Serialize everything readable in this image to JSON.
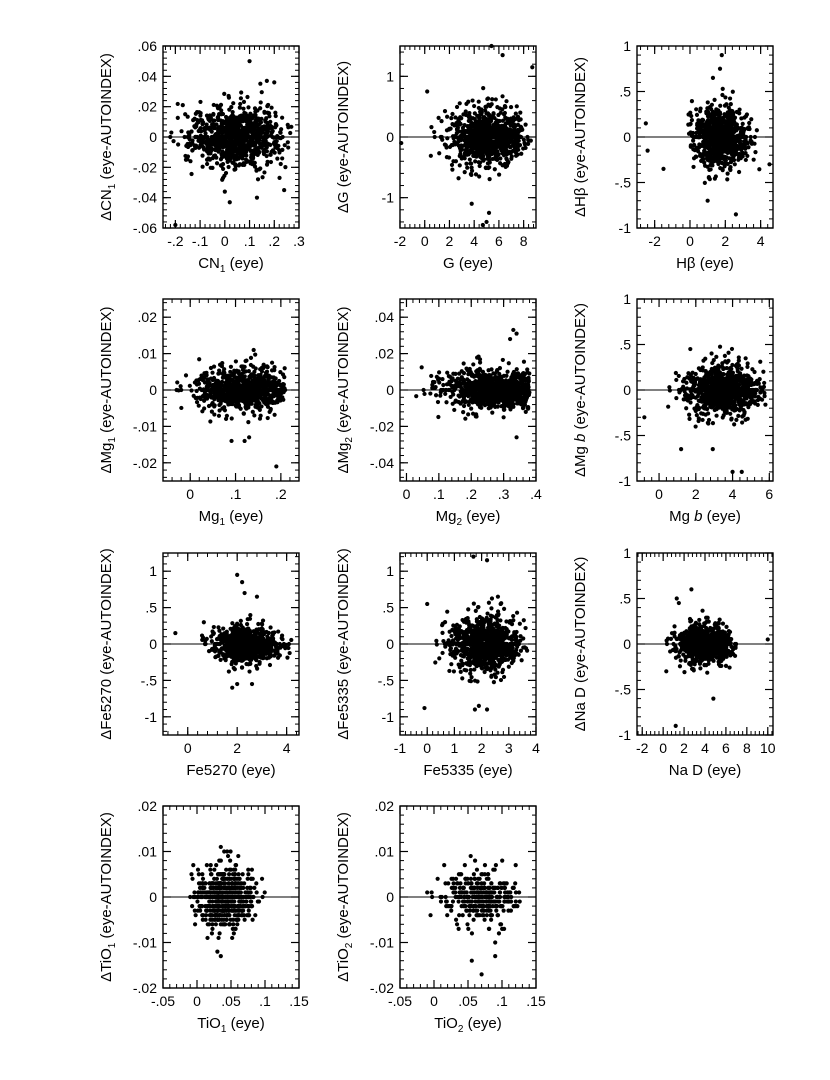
{
  "chart_data": [
    {
      "type": "scatter",
      "xlabel": "CN1 (eye)",
      "xlabel_base": "CN",
      "xlabel_sub": "1",
      "xlabel_tail": " (eye)",
      "ylabel_base": "ΔCN",
      "ylabel_sub": "1",
      "ylabel_tail": " (eye-AUTOINDEX)",
      "xlim": [
        -0.25,
        0.3
      ],
      "ylim": [
        -0.06,
        0.06
      ],
      "xticks": [
        -0.2,
        -0.1,
        0,
        0.1,
        0.2,
        0.3
      ],
      "xtick_labels": [
        "-.2",
        "-.1",
        "0",
        ".1",
        ".2",
        ".3"
      ],
      "yticks": [
        -0.06,
        -0.04,
        -0.02,
        0,
        0.02,
        0.04,
        0.06
      ],
      "ytick_labels": [
        "-.06",
        "-.04",
        "-.02",
        "0",
        ".02",
        ".04",
        ".06"
      ],
      "reference_line_y": 0,
      "sample": {
        "n": 950,
        "x_mean": 0.04,
        "x_sd": 0.09,
        "y_sd": 0.009,
        "x_min": -0.23,
        "x_max": 0.27
      },
      "outliers": [
        [
          0.1,
          0.05
        ],
        [
          0.17,
          0.037
        ],
        [
          0.2,
          0.036
        ],
        [
          -0.2,
          -0.058
        ],
        [
          0.24,
          -0.035
        ],
        [
          0.02,
          -0.043
        ],
        [
          0.13,
          -0.04
        ],
        [
          -0.17,
          0.021
        ],
        [
          0.0,
          -0.036
        ]
      ]
    },
    {
      "type": "scatter",
      "xlabel": "G (eye)",
      "ylabel": "ΔG (eye-AUTOINDEX)",
      "xlim": [
        -2,
        9
      ],
      "ylim": [
        -1.5,
        1.5
      ],
      "xticks": [
        -2,
        0,
        2,
        4,
        6,
        8
      ],
      "xtick_labels": [
        "-2",
        "0",
        "2",
        "4",
        "6",
        "8"
      ],
      "yticks": [
        -1,
        0,
        1
      ],
      "ytick_labels": [
        "-1",
        "0",
        "1"
      ],
      "reference_line_y": 0,
      "sample": {
        "n": 950,
        "x_mean": 5.0,
        "x_sd": 1.5,
        "y_sd": 0.22,
        "x_min": -1.9,
        "x_max": 8.8
      },
      "outliers": [
        [
          5.4,
          1.5
        ],
        [
          6.3,
          1.35
        ],
        [
          8.7,
          1.15
        ],
        [
          3.8,
          -1.1
        ],
        [
          5.0,
          -1.4
        ],
        [
          4.7,
          -1.45
        ],
        [
          5.2,
          -1.25
        ],
        [
          0.2,
          0.75
        ],
        [
          -1.9,
          -0.1
        ]
      ]
    },
    {
      "type": "scatter",
      "xlabel": "Hβ (eye)",
      "ylabel": "ΔHβ (eye-AUTOINDEX)",
      "xlim": [
        -3,
        4.7
      ],
      "ylim": [
        -1,
        1
      ],
      "xticks": [
        -2,
        0,
        2,
        4
      ],
      "xtick_labels": [
        "-2",
        "0",
        "2",
        "4"
      ],
      "yticks": [
        -1,
        -0.5,
        0,
        0.5,
        1
      ],
      "ytick_labels": [
        "-1",
        "-.5",
        "0",
        ".5",
        "1"
      ],
      "reference_line_y": 0,
      "sample": {
        "n": 900,
        "x_mean": 1.7,
        "x_sd": 0.7,
        "y_sd": 0.16,
        "x_min": -0.2,
        "x_max": 4.5
      },
      "outliers": [
        [
          1.8,
          0.9
        ],
        [
          1.3,
          0.65
        ],
        [
          1.7,
          0.75
        ],
        [
          -2.5,
          0.15
        ],
        [
          -2.4,
          -0.15
        ],
        [
          -1.5,
          -0.35
        ],
        [
          2.6,
          -0.85
        ],
        [
          1.0,
          -0.7
        ],
        [
          4.5,
          -0.3
        ]
      ]
    },
    {
      "type": "scatter",
      "xlabel_base": "Mg",
      "xlabel_sub": "1",
      "xlabel_tail": " (eye)",
      "ylabel_base": "ΔMg",
      "ylabel_sub": "1",
      "ylabel_tail": " (eye-AUTOINDEX)",
      "xlim": [
        -0.06,
        0.24
      ],
      "ylim": [
        -0.025,
        0.025
      ],
      "xticks": [
        0,
        0.1,
        0.2
      ],
      "xtick_labels": [
        "0",
        ".1",
        ".2"
      ],
      "yticks": [
        -0.02,
        -0.01,
        0,
        0.01,
        0.02
      ],
      "ytick_labels": [
        "-.02",
        "-.01",
        "0",
        ".01",
        ".02"
      ],
      "reference_line_y": 0,
      "sample": {
        "n": 900,
        "x_mean": 0.12,
        "x_sd": 0.05,
        "y_sd": 0.0028,
        "x_min": -0.03,
        "x_max": 0.21
      },
      "outliers": [
        [
          0.14,
          0.011
        ],
        [
          0.19,
          -0.021
        ],
        [
          0.13,
          -0.013
        ],
        [
          0.12,
          -0.014
        ],
        [
          -0.03,
          0.0
        ]
      ]
    },
    {
      "type": "scatter",
      "xlabel_base": "Mg",
      "xlabel_sub": "2",
      "xlabel_tail": " (eye)",
      "ylabel_base": "ΔMg",
      "ylabel_sub": "2",
      "ylabel_tail": " (eye-AUTOINDEX)",
      "xlim": [
        -0.02,
        0.4
      ],
      "ylim": [
        -0.05,
        0.05
      ],
      "xticks": [
        0,
        0.1,
        0.2,
        0.3,
        0.4
      ],
      "xtick_labels": [
        "0",
        ".1",
        ".2",
        ".3",
        ".4"
      ],
      "yticks": [
        -0.04,
        -0.02,
        0,
        0.02,
        0.04
      ],
      "ytick_labels": [
        "-.04",
        "-.02",
        "0",
        ".02",
        ".04"
      ],
      "reference_line_y": 0,
      "sample": {
        "n": 950,
        "x_mean": 0.28,
        "x_sd": 0.08,
        "y_sd": 0.005,
        "x_min": 0.0,
        "x_max": 0.38
      },
      "outliers": [
        [
          0.33,
          0.033
        ],
        [
          0.34,
          0.031
        ],
        [
          0.32,
          0.028
        ],
        [
          0.34,
          -0.026
        ],
        [
          0.36,
          -0.01
        ],
        [
          0.3,
          -0.015
        ]
      ]
    },
    {
      "type": "scatter",
      "xlabel_html": "Mg b (eye)",
      "xlabel_base": "Mg ",
      "xlabel_ital": "b",
      "xlabel_tail": " (eye)",
      "ylabel_base": "ΔMg ",
      "ylabel_ital": "b",
      "ylabel_tail": " (eye-AUTOINDEX)",
      "xlim": [
        -1.2,
        6.2
      ],
      "ylim": [
        -1,
        1
      ],
      "xticks": [
        0,
        2,
        4,
        6
      ],
      "xtick_labels": [
        "0",
        "2",
        "4",
        "6"
      ],
      "yticks": [
        -1,
        -0.5,
        0,
        0.5,
        1
      ],
      "ytick_labels": [
        "-1",
        "-.5",
        "0",
        ".5",
        "1"
      ],
      "reference_line_y": 0,
      "sample": {
        "n": 900,
        "x_mean": 3.5,
        "x_sd": 1.0,
        "y_sd": 0.13,
        "x_min": -0.8,
        "x_max": 5.8
      },
      "outliers": [
        [
          1.7,
          0.45
        ],
        [
          4.0,
          -0.9
        ],
        [
          4.5,
          -0.9
        ],
        [
          1.2,
          -0.65
        ],
        [
          -0.8,
          -0.3
        ]
      ]
    },
    {
      "type": "scatter",
      "xlabel": "Fe5270 (eye)",
      "ylabel": "ΔFe5270 (eye-AUTOINDEX)",
      "xlim": [
        -1,
        4.5
      ],
      "ylim": [
        -1.25,
        1.25
      ],
      "xticks": [
        0,
        2,
        4
      ],
      "xtick_labels": [
        "0",
        "2",
        "4"
      ],
      "yticks": [
        -1,
        -0.5,
        0,
        0.5,
        1
      ],
      "ytick_labels": [
        "-1",
        "-.5",
        "0",
        ".5",
        "1"
      ],
      "reference_line_y": 0,
      "sample": {
        "n": 900,
        "x_mean": 2.4,
        "x_sd": 0.6,
        "y_sd": 0.12,
        "x_min": -0.5,
        "x_max": 4.2
      },
      "outliers": [
        [
          2.0,
          0.95
        ],
        [
          2.2,
          0.85
        ],
        [
          2.3,
          0.7
        ],
        [
          2.8,
          0.65
        ],
        [
          2.0,
          -0.55
        ],
        [
          1.8,
          -0.6
        ],
        [
          2.6,
          -0.55
        ],
        [
          -0.5,
          0.15
        ]
      ]
    },
    {
      "type": "scatter",
      "xlabel": "Fe5335 (eye)",
      "ylabel": "ΔFe5335 (eye-AUTOINDEX)",
      "xlim": [
        -1,
        4
      ],
      "ylim": [
        -1.25,
        1.25
      ],
      "xticks": [
        -1,
        0,
        1,
        2,
        3,
        4
      ],
      "xtick_labels": [
        "-1",
        "0",
        "1",
        "2",
        "3",
        "4"
      ],
      "yticks": [
        -1,
        -0.5,
        0,
        0.5,
        1
      ],
      "ytick_labels": [
        "-1",
        "-.5",
        "0",
        ".5",
        "1"
      ],
      "reference_line_y": 0,
      "sample": {
        "n": 900,
        "x_mean": 2.1,
        "x_sd": 0.6,
        "y_sd": 0.18,
        "x_min": -0.5,
        "x_max": 3.8
      },
      "outliers": [
        [
          1.7,
          1.2
        ],
        [
          2.2,
          1.15
        ],
        [
          2.6,
          0.65
        ],
        [
          2.7,
          0.55
        ],
        [
          1.9,
          -0.85
        ],
        [
          2.2,
          -0.9
        ],
        [
          -0.1,
          -0.88
        ],
        [
          0.0,
          0.55
        ]
      ]
    },
    {
      "type": "scatter",
      "xlabel": "Na D (eye)",
      "ylabel": "ΔNa D (eye-AUTOINDEX)",
      "xlim": [
        -2.5,
        10.5
      ],
      "ylim": [
        -1,
        1
      ],
      "xticks": [
        -2,
        0,
        2,
        4,
        6,
        8,
        10
      ],
      "xtick_labels": [
        "-2",
        "0",
        "2",
        "4",
        "6",
        "8",
        "10"
      ],
      "yticks": [
        -1,
        -0.5,
        0,
        0.5,
        1
      ],
      "ytick_labels": [
        "-1",
        "-.5",
        "0",
        ".5",
        "1"
      ],
      "reference_line_y": 0,
      "sample": {
        "n": 900,
        "x_mean": 4.0,
        "x_sd": 1.3,
        "y_sd": 0.1,
        "x_min": 0.3,
        "x_max": 7.0
      },
      "outliers": [
        [
          2.7,
          0.6
        ],
        [
          1.3,
          0.5
        ],
        [
          1.5,
          0.45
        ],
        [
          1.2,
          -0.9
        ],
        [
          4.8,
          -0.6
        ],
        [
          10.0,
          0.05
        ],
        [
          0.3,
          -0.3
        ]
      ]
    },
    {
      "type": "scatter",
      "xlabel_base": "TiO",
      "xlabel_sub": "1",
      "xlabel_tail": " (eye)",
      "ylabel_base": "ΔTiO",
      "ylabel_sub": "1",
      "ylabel_tail": " (eye-AUTOINDEX)",
      "xlim": [
        -0.05,
        0.15
      ],
      "ylim": [
        -0.02,
        0.02
      ],
      "xticks": [
        -0.05,
        0,
        0.05,
        0.1,
        0.15
      ],
      "xtick_labels": [
        "-.05",
        "0",
        ".05",
        ".1",
        ".15"
      ],
      "yticks": [
        -0.02,
        -0.01,
        0,
        0.01,
        0.02
      ],
      "ytick_labels": [
        "-.02",
        "-.01",
        "0",
        ".01",
        ".02"
      ],
      "reference_line_y": 0,
      "quantized_y": 0.001,
      "sample": {
        "n": 650,
        "x_mean": 0.04,
        "x_sd": 0.02,
        "y_sd": 0.003,
        "x_min": -0.01,
        "x_max": 0.11
      },
      "outliers": [
        [
          0.035,
          0.011
        ],
        [
          0.04,
          0.01
        ],
        [
          0.03,
          -0.012
        ],
        [
          0.035,
          -0.013
        ],
        [
          -0.01,
          0.0
        ]
      ]
    },
    {
      "type": "scatter",
      "xlabel_base": "TiO",
      "xlabel_sub": "2",
      "xlabel_tail": " (eye)",
      "ylabel_base": "ΔTiO",
      "ylabel_sub": "2",
      "ylabel_tail": " (eye-AUTOINDEX)",
      "xlim": [
        -0.05,
        0.15
      ],
      "ylim": [
        -0.02,
        0.02
      ],
      "xticks": [
        -0.05,
        0,
        0.05,
        0.1,
        0.15
      ],
      "xtick_labels": [
        "-.05",
        "0",
        ".05",
        ".1",
        ".15"
      ],
      "yticks": [
        -0.02,
        -0.01,
        0,
        0.01,
        0.02
      ],
      "ytick_labels": [
        "-.02",
        "-.01",
        "0",
        ".01",
        ".02"
      ],
      "reference_line_y": 0,
      "quantized_y": 0.001,
      "sample": {
        "n": 360,
        "x_mean": 0.07,
        "x_sd": 0.025,
        "y_sd": 0.0028,
        "x_min": -0.01,
        "x_max": 0.13
      },
      "outliers": [
        [
          0.015,
          0.007
        ],
        [
          0.04,
          0.005
        ],
        [
          0.09,
          -0.01
        ],
        [
          0.09,
          -0.013
        ],
        [
          0.07,
          -0.017
        ],
        [
          -0.01,
          0.001
        ]
      ]
    }
  ]
}
